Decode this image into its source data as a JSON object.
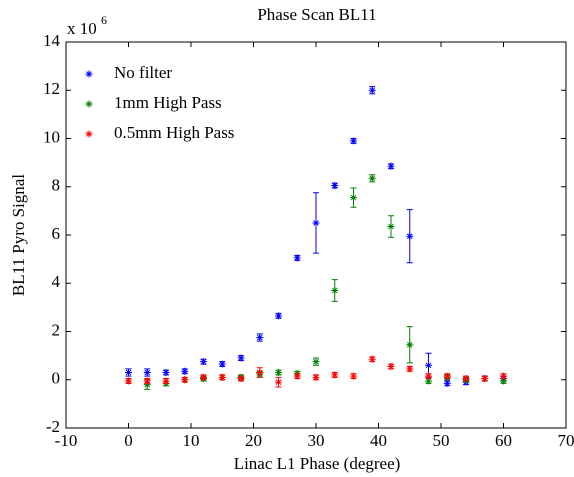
{
  "chart_data": {
    "type": "errorbar-scatter",
    "title": "Phase Scan BL11",
    "xlabel": "Linac L1 Phase  (degree)",
    "ylabel": "BL11 Pyro Signal",
    "y_multiplier": {
      "base": "x 10",
      "exponent": "6"
    },
    "x": [
      0,
      3,
      6,
      9,
      12,
      15,
      18,
      21,
      24,
      27,
      30,
      33,
      36,
      39,
      42,
      45,
      48,
      51,
      54,
      57,
      60
    ],
    "series": [
      {
        "name": "No filter",
        "color": "#0000ff",
        "values": [
          0.3,
          0.3,
          0.3,
          0.35,
          0.75,
          0.65,
          0.9,
          1.75,
          2.65,
          5.05,
          6.5,
          8.05,
          9.9,
          12.0,
          8.85,
          5.95,
          0.6,
          -0.15,
          -0.1,
          0.05,
          0.05
        ],
        "errors": [
          0.15,
          0.15,
          0.1,
          0.1,
          0.1,
          0.1,
          0.1,
          0.15,
          0.1,
          0.1,
          1.25,
          0.1,
          0.1,
          0.15,
          0.1,
          1.1,
          0.5,
          0.1,
          0.1,
          0.1,
          0.1
        ]
      },
      {
        "name": "1mm High Pass",
        "color": "#008000",
        "values": [
          -0.05,
          -0.2,
          -0.15,
          0.0,
          0.05,
          0.1,
          0.1,
          0.25,
          0.3,
          0.25,
          0.75,
          3.7,
          7.55,
          8.35,
          6.35,
          1.45,
          -0.05,
          0.1,
          0.0,
          0.05,
          -0.05
        ],
        "errors": [
          0.1,
          0.2,
          0.1,
          0.1,
          0.1,
          0.1,
          0.1,
          0.1,
          0.1,
          0.1,
          0.15,
          0.45,
          0.4,
          0.15,
          0.45,
          0.75,
          0.1,
          0.1,
          0.1,
          0.1,
          0.1
        ]
      },
      {
        "name": "0.5mm High Pass",
        "color": "#ff0000",
        "values": [
          -0.05,
          -0.05,
          -0.05,
          0.0,
          0.1,
          0.1,
          0.05,
          0.3,
          -0.1,
          0.15,
          0.1,
          0.2,
          0.15,
          0.85,
          0.55,
          0.45,
          0.15,
          0.15,
          0.05,
          0.05,
          0.15
        ],
        "errors": [
          0.1,
          0.1,
          0.1,
          0.1,
          0.1,
          0.1,
          0.1,
          0.2,
          0.2,
          0.1,
          0.1,
          0.1,
          0.1,
          0.1,
          0.1,
          0.1,
          0.1,
          0.1,
          0.1,
          0.1,
          0.1
        ]
      }
    ],
    "xlim": [
      -10,
      70
    ],
    "xticks": [
      -10,
      0,
      10,
      20,
      30,
      40,
      50,
      60,
      70
    ],
    "ylim": [
      -2,
      14
    ],
    "yticks": [
      -2,
      0,
      2,
      4,
      6,
      8,
      10,
      12,
      14
    ],
    "grid": false,
    "legend": "upper-left"
  }
}
